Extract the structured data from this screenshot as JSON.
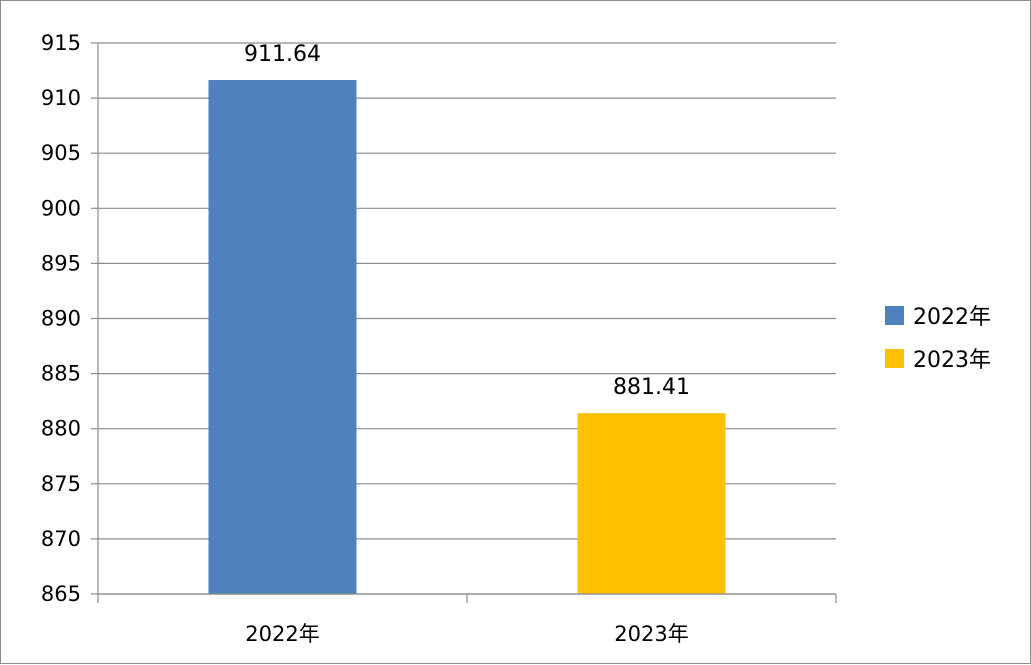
{
  "chart_data": {
    "type": "bar",
    "categories": [
      "2022年",
      "2023年"
    ],
    "series": [
      {
        "name": "2022年",
        "category": "2022年",
        "value": 911.64,
        "color": "#4F81BD"
      },
      {
        "name": "2023年",
        "category": "2023年",
        "value": 881.41,
        "color": "#FFC000"
      }
    ],
    "ylim": [
      865,
      915
    ],
    "yticks": [
      865,
      870,
      875,
      880,
      885,
      890,
      895,
      900,
      905,
      910,
      915
    ],
    "data_labels": [
      "911.64",
      "881.41"
    ],
    "grid": true,
    "legend": "right",
    "gridline_color": "#8C8C8C",
    "axis_color": "#8C8C8C"
  }
}
